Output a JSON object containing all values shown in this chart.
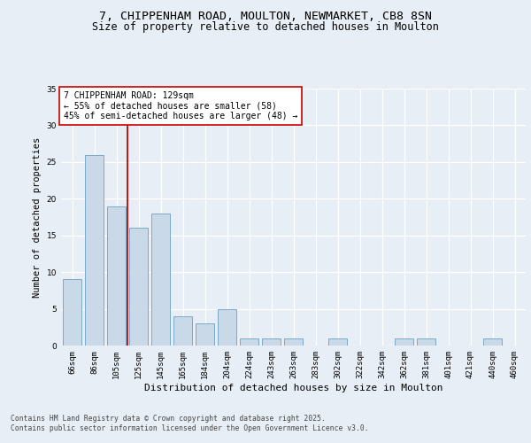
{
  "title": "7, CHIPPENHAM ROAD, MOULTON, NEWMARKET, CB8 8SN",
  "subtitle": "Size of property relative to detached houses in Moulton",
  "xlabel": "Distribution of detached houses by size in Moulton",
  "ylabel": "Number of detached properties",
  "categories": [
    "66sqm",
    "86sqm",
    "105sqm",
    "125sqm",
    "145sqm",
    "165sqm",
    "184sqm",
    "204sqm",
    "224sqm",
    "243sqm",
    "263sqm",
    "283sqm",
    "302sqm",
    "322sqm",
    "342sqm",
    "362sqm",
    "381sqm",
    "401sqm",
    "421sqm",
    "440sqm",
    "460sqm"
  ],
  "values": [
    9,
    26,
    19,
    16,
    18,
    4,
    3,
    5,
    1,
    1,
    1,
    0,
    1,
    0,
    0,
    1,
    1,
    0,
    0,
    1,
    0
  ],
  "bar_color": "#c9d9e8",
  "bar_edge_color": "#7aaac8",
  "background_color": "#e8eef5",
  "plot_background": "#e8eef5",
  "grid_color": "#ffffff",
  "vline_color": "#cc0000",
  "vline_x_index": 2.5,
  "annotation_text": "7 CHIPPENHAM ROAD: 129sqm\n← 55% of detached houses are smaller (58)\n45% of semi-detached houses are larger (48) →",
  "annotation_box_facecolor": "#ffffff",
  "annotation_box_edgecolor": "#cc0000",
  "footer": "Contains HM Land Registry data © Crown copyright and database right 2025.\nContains public sector information licensed under the Open Government Licence v3.0.",
  "ylim": [
    0,
    35
  ],
  "yticks": [
    0,
    5,
    10,
    15,
    20,
    25,
    30,
    35
  ],
  "title_fontsize": 9.5,
  "subtitle_fontsize": 8.5,
  "xlabel_fontsize": 8,
  "ylabel_fontsize": 7.5,
  "tick_fontsize": 6.5,
  "annotation_fontsize": 7,
  "footer_fontsize": 5.8
}
